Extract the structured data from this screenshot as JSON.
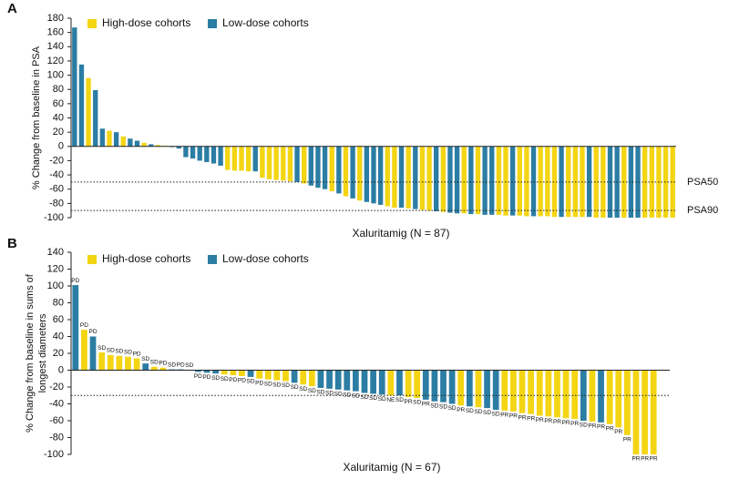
{
  "chart_data": [
    {
      "type": "bar",
      "panel": "A",
      "y_label": [
        "% Change from baseline in PSA"
      ],
      "x_label": "Xaluritamig (N = 87)",
      "ylim": [
        -100,
        180
      ],
      "yticks": [
        -100,
        -80,
        -60,
        -40,
        -20,
        0,
        20,
        40,
        60,
        80,
        100,
        120,
        140,
        160,
        180
      ],
      "reference_lines": [
        {
          "value": -50,
          "label": "PSA50"
        },
        {
          "value": -90,
          "label": "PSA90"
        }
      ],
      "series": [
        {
          "name": "High-dose cohorts",
          "color": "#f3d513",
          "values": [
            null,
            null,
            96,
            null,
            null,
            22,
            null,
            14,
            null,
            null,
            5,
            null,
            2,
            1,
            null,
            null,
            null,
            null,
            null,
            null,
            null,
            null,
            -33,
            -34,
            -34,
            -35,
            null,
            -44,
            -46,
            -47,
            -48,
            -49,
            null,
            -52,
            null,
            null,
            null,
            -63,
            null,
            -70,
            null,
            -76,
            null,
            null,
            null,
            -84,
            -86,
            null,
            -87,
            null,
            -89,
            -90,
            null,
            -92,
            null,
            null,
            -94,
            null,
            -95,
            null,
            null,
            -96,
            -97,
            null,
            -97,
            -98,
            null,
            -98,
            -98,
            -99,
            null,
            -99,
            -99,
            -99,
            null,
            -100,
            -100,
            null,
            null,
            -100,
            null,
            null,
            -100,
            -100,
            -100,
            -100,
            -100
          ]
        },
        {
          "name": "Low-dose cohorts",
          "color": "#2b7da3",
          "values": [
            167,
            115,
            null,
            79,
            25,
            null,
            20,
            null,
            11,
            8,
            null,
            3,
            null,
            null,
            -1,
            -3,
            -15,
            -17,
            -20,
            -22,
            -24,
            -27,
            null,
            null,
            null,
            null,
            -35,
            null,
            null,
            null,
            null,
            null,
            -50,
            null,
            -55,
            -58,
            -60,
            null,
            -66,
            null,
            -73,
            null,
            -78,
            -80,
            -82,
            null,
            null,
            -86,
            null,
            -88,
            null,
            null,
            -91,
            null,
            -93,
            -94,
            null,
            -95,
            null,
            -96,
            -96,
            null,
            null,
            -97,
            null,
            null,
            -98,
            null,
            null,
            null,
            -99,
            null,
            null,
            null,
            -99,
            null,
            null,
            -100,
            -100,
            null,
            -100,
            -100,
            null,
            null,
            null,
            null,
            null
          ]
        }
      ]
    },
    {
      "type": "bar",
      "panel": "B",
      "y_label": [
        "% Change from baseline in sums of",
        "longest diameters"
      ],
      "x_label": "Xaluritamig (N = 67)",
      "ylim": [
        -100,
        140
      ],
      "yticks": [
        -100,
        -80,
        -60,
        -40,
        -20,
        0,
        20,
        40,
        60,
        80,
        100,
        120,
        140
      ],
      "reference_lines": [
        {
          "value": -30
        }
      ],
      "series": [
        {
          "name": "High-dose cohorts",
          "color": "#f3d513",
          "values": [
            null,
            48,
            null,
            21,
            18,
            17,
            16,
            14,
            null,
            4,
            3,
            null,
            null,
            null,
            null,
            null,
            null,
            -5,
            -6,
            -7,
            null,
            -10,
            -11,
            -12,
            -13,
            null,
            -17,
            -19,
            null,
            null,
            null,
            null,
            null,
            null,
            null,
            null,
            -30,
            null,
            -32,
            -33,
            null,
            null,
            null,
            null,
            -42,
            null,
            -44,
            null,
            null,
            -48,
            -49,
            -51,
            -52,
            -54,
            -55,
            -56,
            -57,
            -58,
            null,
            -61,
            null,
            -64,
            -68,
            -77,
            -100,
            -100,
            -100
          ]
        },
        {
          "name": "Low-dose cohorts",
          "color": "#2b7da3",
          "values": [
            101,
            null,
            40,
            null,
            null,
            null,
            null,
            null,
            8,
            null,
            null,
            1,
            1,
            0.5,
            -2,
            -3,
            -4,
            null,
            null,
            null,
            -8,
            null,
            null,
            null,
            null,
            -15,
            null,
            null,
            -21,
            -22,
            -23,
            -24,
            -25,
            -27,
            -28,
            -29,
            null,
            -30,
            null,
            null,
            -35,
            -37,
            -38,
            -40,
            null,
            -43,
            null,
            -45,
            -47,
            null,
            null,
            null,
            null,
            null,
            null,
            null,
            null,
            null,
            -60,
            null,
            -62,
            null,
            null,
            null,
            null,
            null,
            null
          ]
        }
      ],
      "bar_labels": [
        "PD",
        "PD",
        "PD",
        "SD",
        "SD",
        "SD",
        "SD",
        "PD",
        "SD",
        "SD",
        "PD",
        "SD",
        "PD",
        "SD",
        "PD",
        "PD",
        "SD",
        "SD",
        "PD",
        "PD",
        "SD",
        "PD",
        "SD",
        "SD",
        "SD",
        "SD",
        "SD",
        "SD",
        "SD",
        "SD",
        "SD",
        "SD",
        "SD",
        "SD",
        "SD",
        "SD",
        "NE",
        "SD",
        "PR",
        "SD",
        "PR",
        "SD",
        "SD",
        "SD",
        "PR",
        "SD",
        "SD",
        "SD",
        "SD",
        "PR",
        "PR",
        "PR",
        "PR",
        "PR",
        "PR",
        "PR",
        "PR",
        "PR",
        "SD",
        "PR",
        "PR",
        "PR",
        "PR",
        "PR",
        "PR",
        "PR",
        "PR"
      ]
    }
  ]
}
